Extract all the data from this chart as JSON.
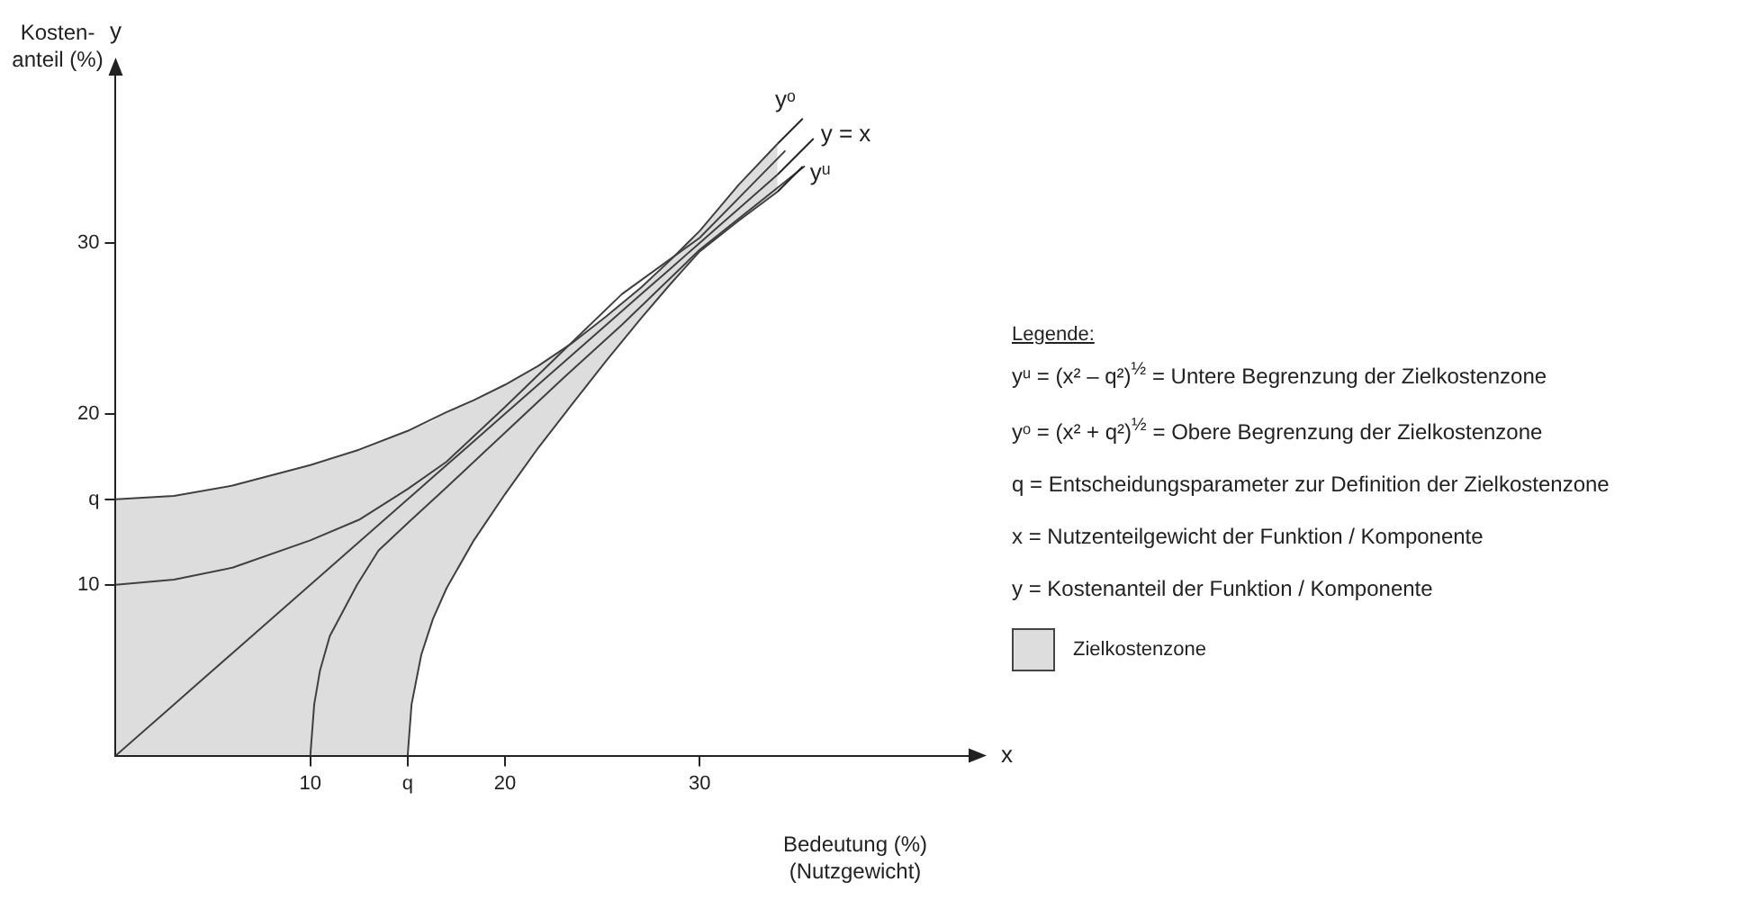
{
  "chart_data": {
    "type": "line",
    "xlabel": "Bedeutung (%)\n(Nutzgewicht)",
    "ylabel": "Kosten-\nanteil (%)",
    "legend_title": "Legende:",
    "legend": "right",
    "xlim": [
      0,
      44
    ],
    "ylim": [
      0,
      40
    ],
    "xticks": [
      10,
      {
        "value": 15,
        "label": "q"
      },
      20,
      30
    ],
    "yticks": [
      10,
      {
        "value": 15,
        "label": "q"
      },
      20,
      30
    ],
    "series": [
      {
        "type": "line",
        "name": "y = x",
        "color": "#404040",
        "x": [
          0,
          3,
          6,
          10,
          12.5,
          15,
          15.2,
          15.7,
          16.3,
          17,
          18.4,
          20,
          21.7,
          23.4,
          25.2,
          27,
          28.5,
          30,
          32,
          34
        ],
        "values": [
          0,
          3,
          6,
          10,
          12.5,
          15,
          15.2,
          15.7,
          16.3,
          17,
          18.4,
          20,
          21.7,
          23.4,
          25.2,
          27,
          28.5,
          30,
          32,
          34
        ],
        "upper": [
          15,
          15.2,
          15.8,
          17,
          17.9,
          19,
          19.1,
          19.3,
          19.6,
          20.1,
          20.8,
          21.7,
          22.8,
          24.1,
          25.7,
          27.4,
          29,
          30.7,
          33.4,
          35.8
        ],
        "lower": [
          0,
          0,
          0,
          0,
          0,
          0,
          3,
          5.9,
          8,
          9.8,
          12.6,
          15.3,
          18,
          20.5,
          23.1,
          25.6,
          27.6,
          29.5,
          31.3,
          33
        ]
      },
      {
        "type": "line",
        "name": "yᵒ",
        "color": "#404040",
        "x": [
          0,
          3,
          6,
          10,
          12.5,
          15,
          17,
          18.4,
          20,
          21.7,
          23.4,
          25.2,
          27,
          28.5,
          30,
          32,
          34
        ],
        "values": [
          15,
          15.2,
          15.8,
          17,
          17.9,
          19,
          20.1,
          20.8,
          21.7,
          22.8,
          24.1,
          25.7,
          27.4,
          29,
          30.7,
          33.4,
          35.8
        ]
      },
      {
        "type": "line",
        "name": "yᵘ",
        "color": "#404040",
        "x": [
          15,
          15.2,
          15.7,
          16.3,
          17,
          18.4,
          20,
          21.7,
          23.4,
          25.2,
          27,
          28.5,
          30,
          32,
          34
        ],
        "values": [
          0,
          3,
          5.9,
          8,
          9.8,
          12.6,
          15.3,
          18,
          20.5,
          23.1,
          25.6,
          27.6,
          29.5,
          31.3,
          33
        ]
      },
      {
        "type": "line",
        "color": "#404040",
        "x": [
          0,
          3,
          6,
          10,
          12.5,
          15,
          17,
          20,
          23,
          26,
          30,
          34.4
        ],
        "values": [
          10,
          10.3,
          11,
          12.6,
          13.8,
          15.6,
          17.2,
          20.4,
          23.7,
          27,
          30.3,
          35.4
        ]
      },
      {
        "type": "line",
        "color": "#404040",
        "x": [
          10,
          10.2,
          10.5,
          11,
          12.4,
          13.5,
          15,
          17,
          20,
          23,
          26,
          30,
          35.4
        ],
        "values": [
          0,
          3,
          5,
          7,
          10,
          12,
          13.6,
          15.7,
          18.9,
          22.1,
          25.2,
          29.6,
          34.5
        ]
      }
    ],
    "annotations": [
      "x",
      "y",
      "yᵘ = (x² – q²)$^{½}$ = Untere Begrenzung der Zielkostenzone",
      "yᵒ = (x² + q²)$^{½}$ = Obere Begrenzung der Zielkostenzone",
      "q  = Entscheidungsparameter zur Definition der Zielkostenzone",
      "x  = Nutzenteilgewicht der Funktion / Komponente",
      "y  = Kostenanteil der Funktion / Komponente",
      "Zielkostenzone"
    ]
  }
}
